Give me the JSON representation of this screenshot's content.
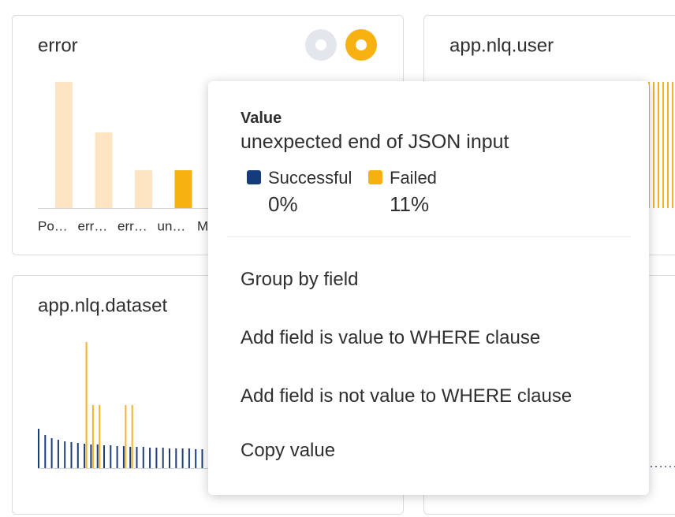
{
  "panels": [
    {
      "title": "error",
      "chart": {
        "type": "bar",
        "categories": [
          "Po…",
          "err…",
          "err…",
          "un…",
          "M"
        ],
        "values": [
          10,
          6,
          3,
          3,
          null
        ],
        "colors": [
          "#fde5c3",
          "#fde5c3",
          "#fde5c3",
          "#f7b212",
          "#fde5c3"
        ]
      }
    },
    {
      "title": "app.nlq.user"
    },
    {
      "title": "app.nlq.dataset",
      "chart": {
        "type": "bar",
        "series": [
          {
            "color": "#1b3d7a",
            "values": [
              50,
              42,
              38,
              36,
              34,
              33,
              32,
              31,
              30,
              30,
              29,
              29,
              28,
              28,
              27,
              27,
              27,
              26,
              26,
              26,
              25,
              25,
              25,
              25,
              24,
              24
            ]
          },
          {
            "color": "#f4b225",
            "values": [
              null,
              null,
              null,
              null,
              null,
              null,
              null,
              160,
              80,
              80,
              null,
              null,
              null,
              80,
              80,
              null,
              null,
              null,
              null,
              null,
              null,
              null,
              null,
              null,
              null,
              null
            ]
          }
        ]
      }
    }
  ],
  "popup": {
    "label": "Value",
    "value": "unexpected end of JSON input",
    "legend": [
      {
        "name": "Successful",
        "color": "#163b7c",
        "share": "0%"
      },
      {
        "name": "Failed",
        "color": "#f6b10f",
        "share": "11%"
      }
    ],
    "actions": [
      "Group by field",
      "Add field is value to WHERE clause",
      "Add field is not value to WHERE clause",
      "Copy value"
    ]
  }
}
